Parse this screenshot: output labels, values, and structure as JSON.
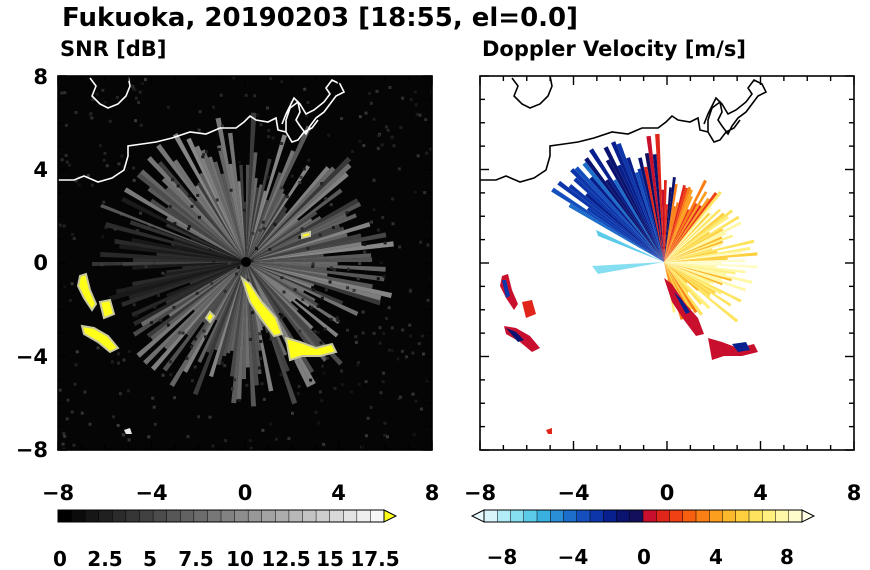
{
  "title": "Fukuoka, 20190203 [18:55, el=0.0]",
  "chart_data": [
    {
      "type": "heatmap",
      "title": "SNR [dB]",
      "xlim": [
        -8,
        8
      ],
      "ylim": [
        -8,
        8
      ],
      "x_ticks": [
        "−8",
        "−4",
        "0",
        "4",
        "8"
      ],
      "y_ticks": [
        "8",
        "4",
        "0",
        "−4",
        "−8"
      ],
      "colorbar": {
        "range": [
          0,
          18.5
        ],
        "tick_labels": [
          "0",
          "2.5",
          "5",
          "7.5",
          "10",
          "12.5",
          "15",
          "17.5"
        ],
        "extend": "max",
        "colors": [
          "#000000",
          "#0b0b0b",
          "#161616",
          "#202020",
          "#2b2b2b",
          "#363636",
          "#414141",
          "#4c4c4c",
          "#575757",
          "#626262",
          "#6c6c6c",
          "#777777",
          "#828282",
          "#8d8d8d",
          "#989898",
          "#a3a3a3",
          "#adadad",
          "#b8b8b8",
          "#c3c3c3",
          "#cecece",
          "#d9d9d9",
          "#e4e4e4",
          "#eeeeee",
          "#f6f6f6"
        ],
        "extend_color": "#ffff1a"
      },
      "background_color": "#050505",
      "coastline_color": "#ffffff"
    },
    {
      "type": "heatmap",
      "title": "Doppler Velocity [m/s]",
      "xlim": [
        -8,
        8
      ],
      "ylim": [
        -8,
        8
      ],
      "x_ticks": [
        "−8",
        "−4",
        "0",
        "4",
        "8"
      ],
      "y_ticks": [],
      "colorbar": {
        "range": [
          -10,
          10
        ],
        "tick_labels": [
          "−8",
          "−4",
          "0",
          "4",
          "8"
        ],
        "extend": "both",
        "colors": [
          "#d7f5fb",
          "#b2ecf6",
          "#86dff0",
          "#5ccbea",
          "#39b0e0",
          "#2a8fd6",
          "#1d6dca",
          "#144fbd",
          "#0c36aa",
          "#07208d",
          "#0a1370",
          "#120f5c",
          "#c8102e",
          "#e0261b",
          "#ef4114",
          "#f65f10",
          "#fa7f14",
          "#fc9e1e",
          "#fdb92c",
          "#fed040",
          "#fee35e",
          "#fff07f",
          "#fff8a6",
          "#fffccc"
        ],
        "extend_low_color": "#e8fafd",
        "extend_high_color": "#fffde6"
      },
      "background_color": "#ffffff",
      "coastline_color": "#000000"
    }
  ]
}
